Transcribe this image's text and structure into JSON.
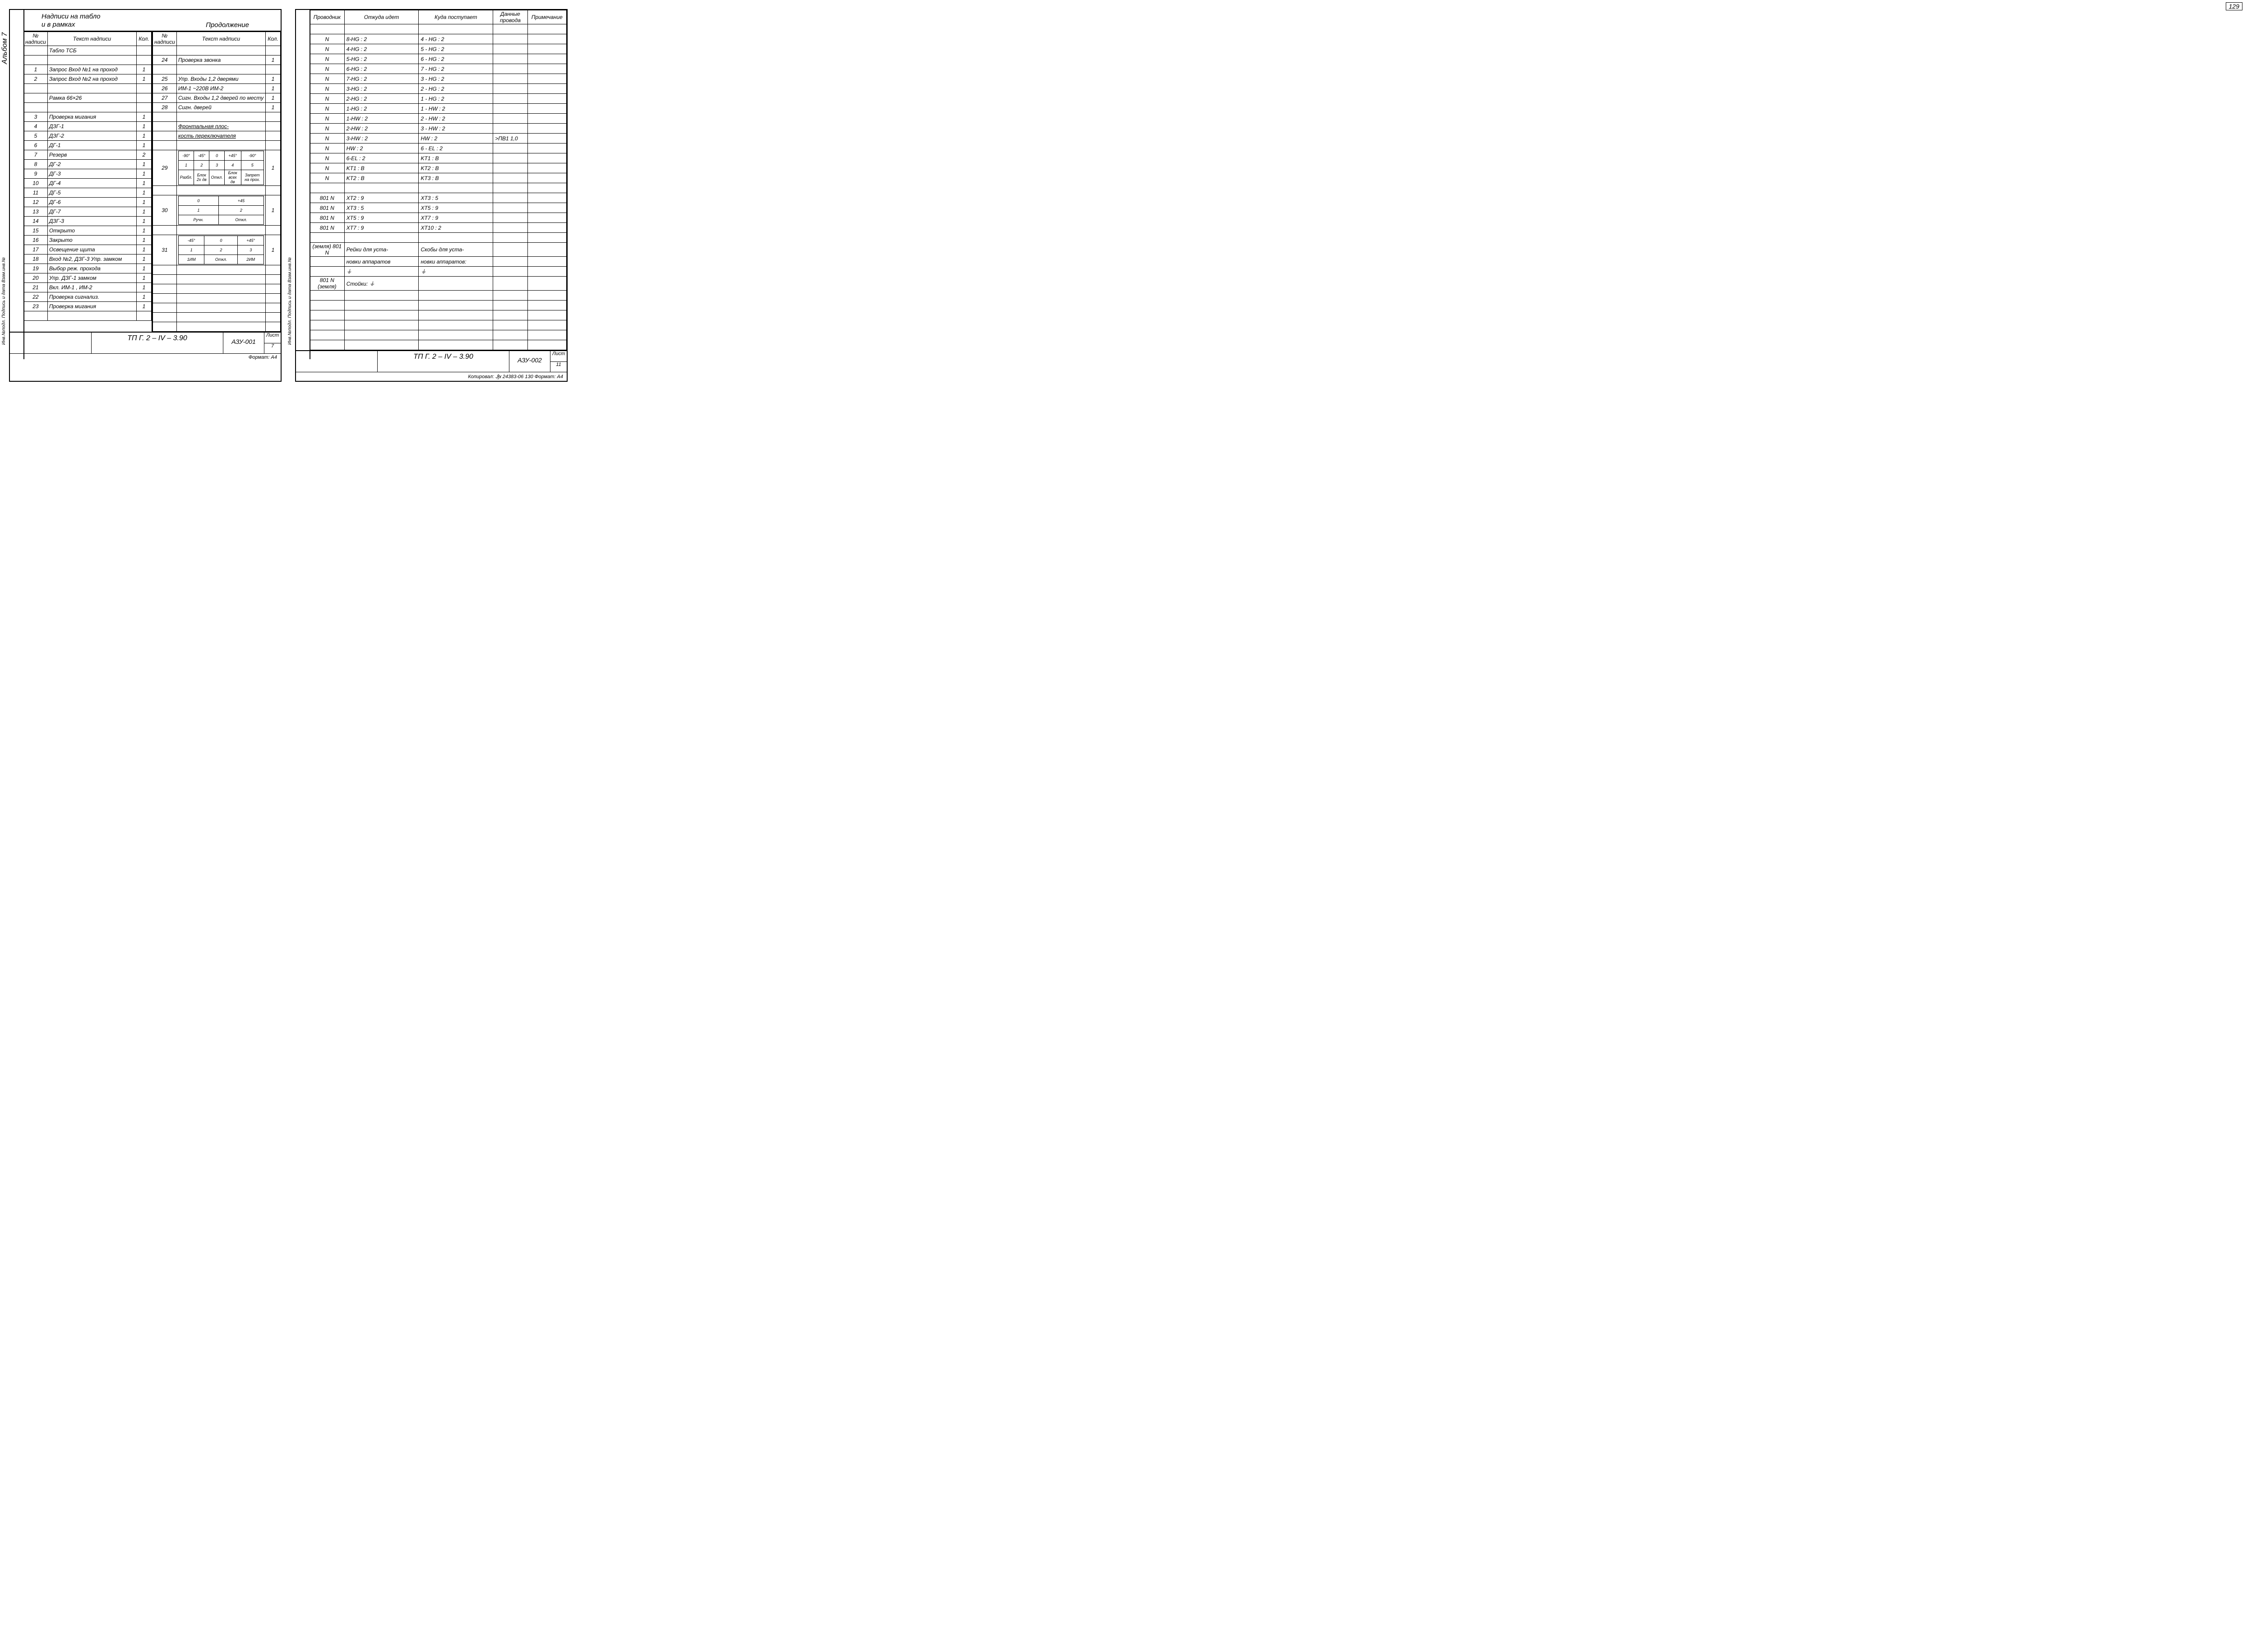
{
  "page_number": "129",
  "album_label": "Альбом  7",
  "side_text": "Инв.№подл. Подпись и дата Взам.инв.№",
  "left_sheet": {
    "header_left_l1": "Надписи на табло",
    "header_left_l2": "и в рамках",
    "header_right": "Продолжение",
    "col_headers": {
      "num": "№ надписи",
      "text": "Текст  надписи",
      "kol": "Кол."
    },
    "left_rows": [
      {
        "n": "",
        "t": "Табло  ТСБ",
        "k": ""
      },
      {
        "n": "",
        "t": "",
        "k": ""
      },
      {
        "n": "1",
        "t": "Запрос Вход №1 на проход",
        "k": "1"
      },
      {
        "n": "2",
        "t": "Запрос Вход №2 на проход",
        "k": "1"
      },
      {
        "n": "",
        "t": "",
        "k": ""
      },
      {
        "n": "",
        "t": "Рамка   66×26",
        "k": ""
      },
      {
        "n": "",
        "t": "",
        "k": ""
      },
      {
        "n": "3",
        "t": "Проверка мигания",
        "k": "1"
      },
      {
        "n": "4",
        "t": "ДЗГ-1",
        "k": "1"
      },
      {
        "n": "5",
        "t": "ДЗГ-2",
        "k": "1"
      },
      {
        "n": "6",
        "t": "ДГ-1",
        "k": "1"
      },
      {
        "n": "7",
        "t": "Резерв",
        "k": "2"
      },
      {
        "n": "8",
        "t": "ДГ-2",
        "k": "1"
      },
      {
        "n": "9",
        "t": "ДГ-3",
        "k": "1"
      },
      {
        "n": "10",
        "t": "ДГ-4",
        "k": "1"
      },
      {
        "n": "11",
        "t": "ДГ-5",
        "k": "1"
      },
      {
        "n": "12",
        "t": "ДГ-6",
        "k": "1"
      },
      {
        "n": "13",
        "t": "ДГ-7",
        "k": "1"
      },
      {
        "n": "14",
        "t": "ДЗГ-3",
        "k": "1"
      },
      {
        "n": "15",
        "t": "Открыто",
        "k": "1"
      },
      {
        "n": "16",
        "t": "Закрыто",
        "k": "1"
      },
      {
        "n": "17",
        "t": "Освещение щита",
        "k": "1"
      },
      {
        "n": "18",
        "t": "Вход №2, ДЗГ-3 Упр. замком",
        "k": "1"
      },
      {
        "n": "19",
        "t": "Выбор реж. прохода",
        "k": "1"
      },
      {
        "n": "20",
        "t": "Упр. ДЗГ-1 замком",
        "k": "1"
      },
      {
        "n": "21",
        "t": "Вкл. ИМ-1 , ИМ-2",
        "k": "1"
      },
      {
        "n": "22",
        "t": "Проверка сигнализ.",
        "k": "1"
      },
      {
        "n": "23",
        "t": "Проверка мигания",
        "k": "1"
      },
      {
        "n": "",
        "t": "",
        "k": ""
      }
    ],
    "right_rows_top": [
      {
        "n": "",
        "t": "",
        "k": ""
      },
      {
        "n": "24",
        "t": "Проверка звонка",
        "k": "1"
      },
      {
        "n": "",
        "t": "",
        "k": ""
      },
      {
        "n": "25",
        "t": "Упр. Входы 1,2 дверями",
        "k": "1"
      },
      {
        "n": "26",
        "t": "ИМ-1 ~220В ИМ-2",
        "k": "1"
      },
      {
        "n": "27",
        "t": "Сигн. Входы 1,2 дверей по месту",
        "k": "1"
      },
      {
        "n": "28",
        "t": "Сигн. дверей",
        "k": "1"
      },
      {
        "n": "",
        "t": "",
        "k": ""
      },
      {
        "n": "",
        "t": "Фронтальная плос-",
        "k": "",
        "u": true
      },
      {
        "n": "",
        "t": "кость переключателя",
        "k": "",
        "u": true
      },
      {
        "n": "",
        "t": "",
        "k": ""
      }
    ],
    "switch29": {
      "n": "29",
      "k": "1",
      "r1": [
        "-90°",
        "-45°",
        "0",
        "+45°",
        "-90°"
      ],
      "r2": [
        "1",
        "2",
        "3",
        "4",
        "5"
      ],
      "r3": [
        "Разбл.",
        "Блок 2х дв",
        "Откл.",
        "Блок всех дв",
        "Запрет на прох."
      ]
    },
    "switch30": {
      "n": "30",
      "k": "1",
      "r1": [
        "0",
        "+45"
      ],
      "r2": [
        "1",
        "2"
      ],
      "r3": [
        "Ручн.",
        "Откл."
      ]
    },
    "switch31": {
      "n": "31",
      "k": "1",
      "r1": [
        "-45°",
        "0",
        "+45°"
      ],
      "r2": [
        "1",
        "2",
        "3"
      ],
      "r3": [
        "1ИМ",
        "Откл.",
        "2ИМ"
      ]
    },
    "title": "ТП  Г. 2 – IV – 3.90",
    "code": "АЗУ-001",
    "sheet_label": "Лист",
    "sheet_num": "7",
    "format": "Формат: А4"
  },
  "right_sheet": {
    "headers": {
      "prov": "Проводник",
      "from": "Откуда  идет",
      "to": "Куда  поступает",
      "data": "Данные провода",
      "note": "Примечание"
    },
    "rows": [
      {
        "p": "",
        "f": "",
        "t": "",
        "d": "",
        "n": ""
      },
      {
        "p": "N",
        "f": "8-HG : 2",
        "t": "4 - HG : 2",
        "d": "",
        "n": ""
      },
      {
        "p": "N",
        "f": "4-HG : 2",
        "t": "5 - HG : 2",
        "d": "",
        "n": ""
      },
      {
        "p": "N",
        "f": "5-HG : 2",
        "t": "6 - HG : 2",
        "d": "",
        "n": ""
      },
      {
        "p": "N",
        "f": "6-HG : 2",
        "t": "7 - HG : 2",
        "d": "",
        "n": ""
      },
      {
        "p": "N",
        "f": "7-HG : 2",
        "t": "3 - HG : 2",
        "d": "",
        "n": ""
      },
      {
        "p": "N",
        "f": "3-HG : 2",
        "t": "2 - HG : 2",
        "d": "",
        "n": ""
      },
      {
        "p": "N",
        "f": "2-HG : 2",
        "t": "1 - HG : 2",
        "d": "",
        "n": ""
      },
      {
        "p": "N",
        "f": "1-HG : 2",
        "t": "1 - HW : 2",
        "d": "",
        "n": ""
      },
      {
        "p": "N",
        "f": "1-HW : 2",
        "t": "2 - HW : 2",
        "d": "",
        "n": ""
      },
      {
        "p": "N",
        "f": "2-HW : 2",
        "t": "3 - HW : 2",
        "d": "",
        "n": ""
      },
      {
        "p": "N",
        "f": "3-HW : 2",
        "t": "HW : 2",
        "d": ">ПВ1 1,0",
        "n": ""
      },
      {
        "p": "N",
        "f": "HW : 2",
        "t": "6 - EL : 2",
        "d": "",
        "n": ""
      },
      {
        "p": "N",
        "f": "6-EL : 2",
        "t": "KT1 : B",
        "d": "",
        "n": ""
      },
      {
        "p": "N",
        "f": "KT1 : B",
        "t": "KT2 : B",
        "d": "",
        "n": ""
      },
      {
        "p": "N",
        "f": "KT2 : B",
        "t": "KT3 : B",
        "d": "",
        "n": ""
      },
      {
        "p": "",
        "f": "",
        "t": "",
        "d": "",
        "n": ""
      },
      {
        "p": "801 N",
        "f": "XT2 : 9",
        "t": "XT3 : 5",
        "d": "",
        "n": ""
      },
      {
        "p": "801 N",
        "f": "XT3 : 5",
        "t": "XT5 : 9",
        "d": "",
        "n": ""
      },
      {
        "p": "801 N",
        "f": "XT5 : 9",
        "t": "XT7 : 9",
        "d": "",
        "n": ""
      },
      {
        "p": "801 N",
        "f": "XT7 : 9",
        "t": "XT10 : 2",
        "d": "",
        "n": ""
      },
      {
        "p": "",
        "f": "",
        "t": "",
        "d": "",
        "n": ""
      },
      {
        "p": "(земля) 801 N",
        "f": "Рейки для уста-",
        "t": "Скобы для уста-",
        "d": "",
        "n": ""
      },
      {
        "p": "",
        "f": "новки аппаратов",
        "t": "новки аппаратов:",
        "d": "",
        "n": ""
      },
      {
        "p": "",
        "f": "⏚",
        "t": "⏚",
        "d": "",
        "n": ""
      },
      {
        "p": "801 N (земля)",
        "f": "Стойки: ⏚",
        "t": "",
        "d": "",
        "n": ""
      },
      {
        "p": "",
        "f": "",
        "t": "",
        "d": "",
        "n": ""
      },
      {
        "p": "",
        "f": "",
        "t": "",
        "d": "",
        "n": ""
      },
      {
        "p": "",
        "f": "",
        "t": "",
        "d": "",
        "n": ""
      },
      {
        "p": "",
        "f": "",
        "t": "",
        "d": "",
        "n": ""
      },
      {
        "p": "",
        "f": "",
        "t": "",
        "d": "",
        "n": ""
      },
      {
        "p": "",
        "f": "",
        "t": "",
        "d": "",
        "n": ""
      }
    ],
    "title": "ТП  Г. 2 – IV – 3.90",
    "code": "АЗУ-002",
    "sheet_label": "Лист",
    "sheet_num": "11",
    "footer": "Копировал: Ꮽꭗ   24383-06  130  Формат: А4"
  }
}
